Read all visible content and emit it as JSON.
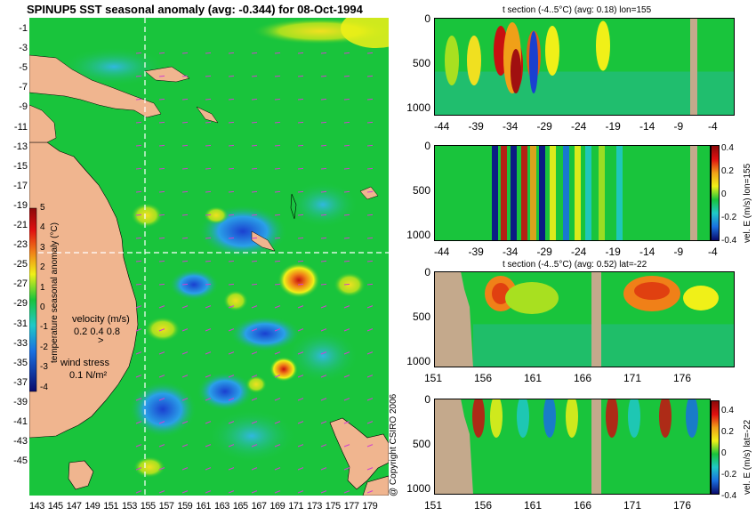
{
  "main_title": "SPINUP5 SST seasonal anomaly (avg: -0.344) for 08-Oct-1994",
  "copyright": "@ Copyright CSIRO 2006",
  "colors": {
    "land": "#f0b58f",
    "section_land": "#c4a98c",
    "sea_base": "#19c43c",
    "dark_blue": "#0a0a8c",
    "red": "#c81010",
    "yellow": "#f0f018",
    "vector_color": "#d040d0"
  },
  "chart_data": [
    {
      "type": "heatmap",
      "id": "map",
      "title": "SPINUP5 SST seasonal anomaly (avg: -0.344) for 08-Oct-1994",
      "y_ticks": [
        "-1",
        "-3",
        "-5",
        "-7",
        "-9",
        "-11",
        "-13",
        "-15",
        "-17",
        "-19",
        "-21",
        "-23",
        "-25",
        "-27",
        "-29",
        "-31",
        "-33",
        "-35",
        "-37",
        "-39",
        "-41",
        "-43",
        "-45"
      ],
      "x_ticks": [
        "143",
        "145",
        "147",
        "149",
        "151",
        "153",
        "155",
        "157",
        "159",
        "161",
        "163",
        "165",
        "167",
        "169",
        "171",
        "173",
        "175",
        "177",
        "179"
      ],
      "colorbar": {
        "label": "temperature seasonal anomaly (°C)",
        "ticks": [
          "5",
          "4",
          "3",
          "2",
          "1",
          "0",
          "-1",
          "-2",
          "-3",
          "-4"
        ],
        "range": [
          -4,
          5
        ]
      },
      "velocity_legend": {
        "title": "velocity (m/s)",
        "values": "0.2 0.4 0.8"
      },
      "wind_legend": {
        "title": "wind stress",
        "value": "0.1 N/m²"
      },
      "section_lines": {
        "lon": 155,
        "lat": -22
      }
    },
    {
      "type": "heatmap",
      "id": "section1",
      "title": "t section (-4..5°C) (avg: 0.18) lon=155",
      "x_ticks": [
        "-44",
        "-39",
        "-34",
        "-29",
        "-24",
        "-19",
        "-14",
        "-9",
        "-4"
      ],
      "y_ticks": [
        "0",
        "500",
        "1000"
      ]
    },
    {
      "type": "heatmap",
      "id": "section2",
      "x_ticks": [
        "-44",
        "-39",
        "-34",
        "-29",
        "-24",
        "-19",
        "-14",
        "-9",
        "-4"
      ],
      "y_ticks": [
        "0",
        "500",
        "1000"
      ],
      "colorbar_label": "vel. E (m/s) lon=155",
      "colorbar_ticks": [
        "0.4",
        "0.2",
        "0",
        "-0.2",
        "-0.4"
      ]
    },
    {
      "type": "heatmap",
      "id": "section3",
      "title": "t section (-4..5°C) (avg: 0.52) lat=-22",
      "x_ticks": [
        "151",
        "156",
        "161",
        "166",
        "171",
        "176"
      ],
      "y_ticks": [
        "0",
        "500",
        "1000"
      ]
    },
    {
      "type": "heatmap",
      "id": "section4",
      "x_ticks": [
        "151",
        "156",
        "161",
        "166",
        "171",
        "176"
      ],
      "y_ticks": [
        "0",
        "500",
        "1000"
      ],
      "colorbar_label": "vel. E (m/s) lat=-22",
      "colorbar_ticks": [
        "0.4",
        "0.2",
        "0",
        "-0.2",
        "-0.4"
      ]
    }
  ]
}
